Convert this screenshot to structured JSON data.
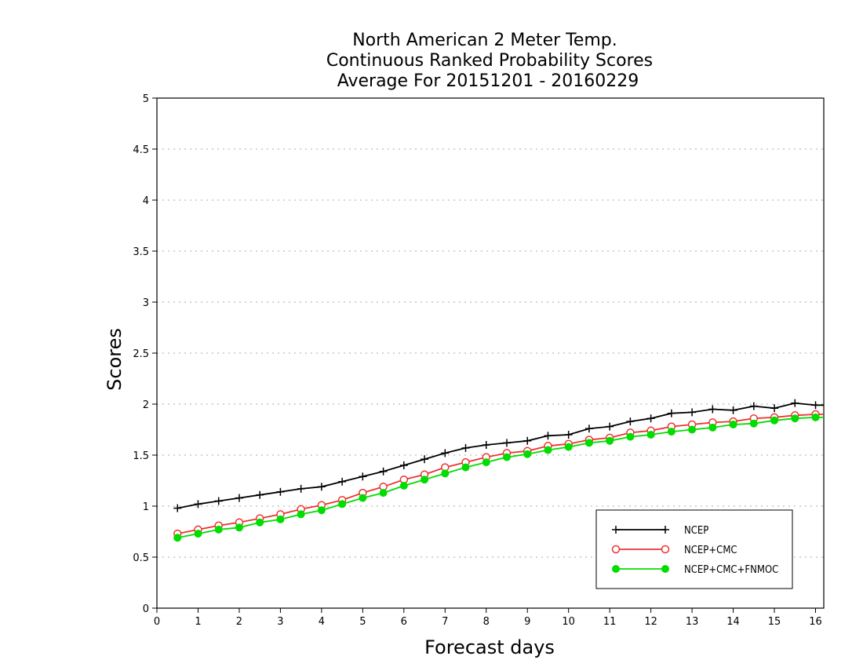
{
  "chart_data": {
    "type": "line",
    "title": [
      "North American 2 Meter Temp.",
      "Continuous Ranked Probability Scores",
      "Average For 20151201 - 20160229"
    ],
    "xlabel": "Forecast days",
    "ylabel": "Scores",
    "xlim": [
      0,
      16.2
    ],
    "ylim": [
      0,
      5
    ],
    "xticks": [
      "0",
      "1",
      "2",
      "3",
      "4",
      "5",
      "6",
      "7",
      "8",
      "9",
      "10",
      "11",
      "12",
      "13",
      "14",
      "15",
      "16"
    ],
    "yticks": [
      "0",
      "0.5",
      "1",
      "1.5",
      "2",
      "2.5",
      "3",
      "3.5",
      "4",
      "4.5",
      "5"
    ],
    "grid": true,
    "legend_position": "bottom-right",
    "x": [
      0.5,
      1,
      1.5,
      2,
      2.5,
      3,
      3.5,
      4,
      4.5,
      5,
      5.5,
      6,
      6.5,
      7,
      7.5,
      8,
      8.5,
      9,
      9.5,
      10,
      10.5,
      11,
      11.5,
      12,
      12.5,
      13,
      13.5,
      14,
      14.5,
      15,
      15.5,
      16,
      16.2
    ],
    "series": [
      {
        "name": "NCEP",
        "color": "#000000",
        "marker": "plus",
        "values": [
          0.98,
          1.02,
          1.05,
          1.08,
          1.11,
          1.14,
          1.17,
          1.19,
          1.24,
          1.29,
          1.34,
          1.4,
          1.46,
          1.52,
          1.57,
          1.6,
          1.62,
          1.64,
          1.69,
          1.7,
          1.76,
          1.78,
          1.83,
          1.86,
          1.91,
          1.92,
          1.95,
          1.94,
          1.98,
          1.96,
          2.01,
          1.99,
          1.99
        ]
      },
      {
        "name": "NCEP+CMC",
        "color": "#ee3333",
        "marker": "open-circle",
        "values": [
          0.73,
          0.77,
          0.81,
          0.84,
          0.88,
          0.92,
          0.97,
          1.01,
          1.06,
          1.13,
          1.19,
          1.26,
          1.31,
          1.38,
          1.43,
          1.48,
          1.52,
          1.54,
          1.59,
          1.61,
          1.65,
          1.67,
          1.72,
          1.74,
          1.78,
          1.8,
          1.82,
          1.83,
          1.86,
          1.87,
          1.89,
          1.9,
          1.9
        ]
      },
      {
        "name": "NCEP+CMC+FNMOC",
        "color": "#00dd00",
        "marker": "filled-circle",
        "values": [
          0.69,
          0.73,
          0.77,
          0.79,
          0.84,
          0.87,
          0.92,
          0.96,
          1.02,
          1.08,
          1.13,
          1.2,
          1.26,
          1.32,
          1.38,
          1.43,
          1.48,
          1.51,
          1.55,
          1.58,
          1.62,
          1.64,
          1.68,
          1.7,
          1.73,
          1.75,
          1.77,
          1.8,
          1.81,
          1.84,
          1.86,
          1.87,
          1.87
        ]
      }
    ]
  }
}
